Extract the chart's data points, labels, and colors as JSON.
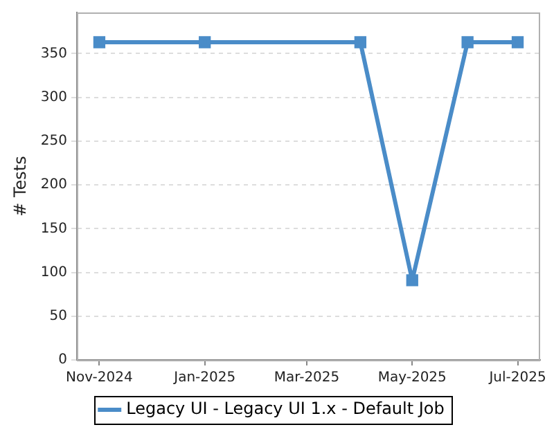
{
  "chart_data": {
    "type": "line",
    "ylabel": "# Tests",
    "x": [
      "2024-11-01",
      "2025-01-01",
      "2025-04-01",
      "2025-05-01",
      "2025-06-02",
      "2025-07-01"
    ],
    "series": [
      {
        "name": "Legacy UI - Legacy UI 1.x - Default Job",
        "color": "#4a8cc8",
        "values": [
          363,
          363,
          363,
          91,
          363,
          363
        ]
      }
    ],
    "xlim": [
      "2024-10-19",
      "2025-07-14"
    ],
    "xticks": [
      {
        "value": "2024-11",
        "label": "Nov-2024"
      },
      {
        "value": "2025-01",
        "label": "Jan-2025"
      },
      {
        "value": "2025-03",
        "label": "Mar-2025"
      },
      {
        "value": "2025-05",
        "label": "May-2025"
      },
      {
        "value": "2025-07",
        "label": "Jul-2025"
      }
    ],
    "ylim": [
      0,
      397
    ],
    "yticks": [
      0,
      50,
      100,
      150,
      200,
      250,
      300,
      350
    ],
    "grid": "y",
    "legend": "bottom",
    "marker": "square",
    "line_style": "solid"
  }
}
